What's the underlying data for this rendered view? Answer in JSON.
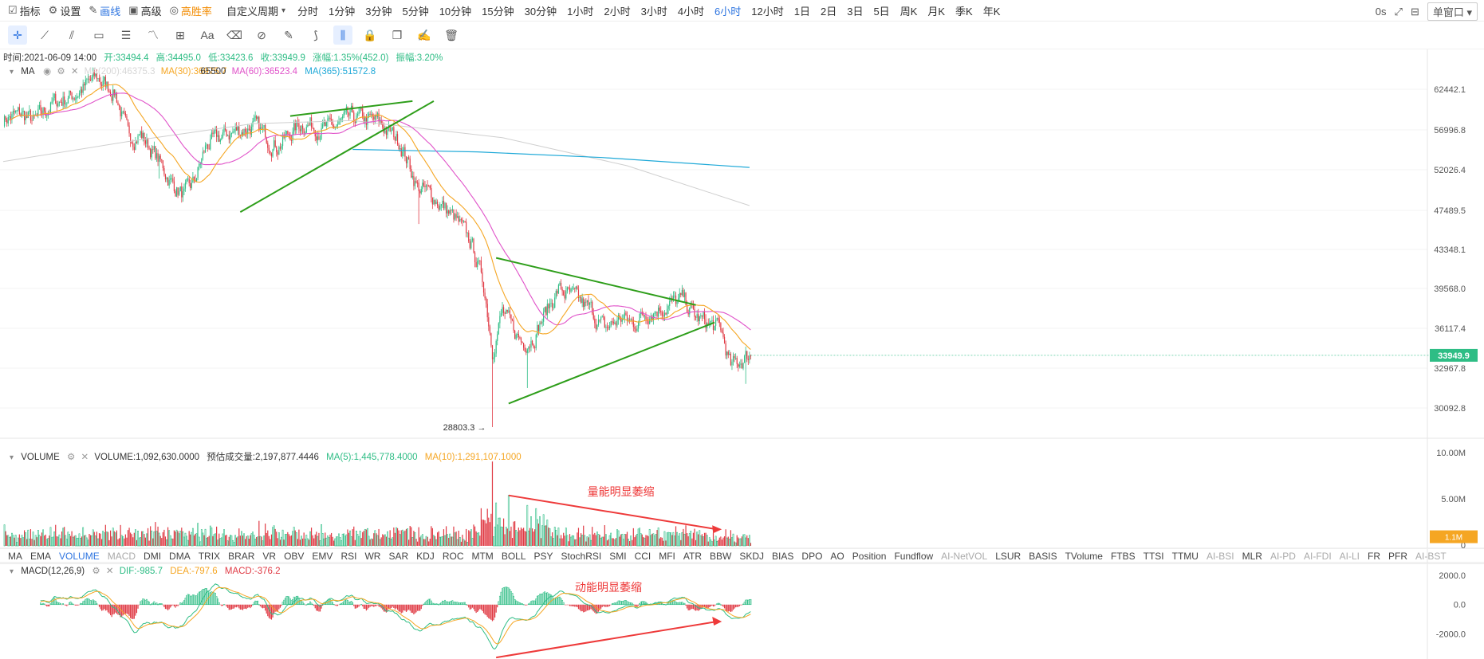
{
  "toolbar": {
    "indicator": "指标",
    "settings": "设置",
    "draw": "画线",
    "advanced": "高级",
    "winrate": "高胜率",
    "custom_period": "自定义周期",
    "periods": [
      "分时",
      "1分钟",
      "3分钟",
      "5分钟",
      "10分钟",
      "15分钟",
      "30分钟",
      "1小时",
      "2小时",
      "3小时",
      "4小时",
      "6小时",
      "12小时",
      "1日",
      "2日",
      "3日",
      "5日",
      "周K",
      "月K",
      "季K",
      "年K"
    ],
    "active_period": "6小时",
    "latency": "0s",
    "window": "单窗口"
  },
  "draw_tools": [
    "crosshair-icon",
    "trendline-icon",
    "fib-icon",
    "rect-icon",
    "channel-icon",
    "wave-icon",
    "measure-icon",
    "text-icon",
    "erase-icon",
    "magnet-icon",
    "pen-icon",
    "pattern-icon",
    "ruler-icon",
    "lock-icon",
    "copy-icon",
    "note-icon",
    "delete-icon"
  ],
  "ohlc": {
    "time": "时间:2021-06-09 14:00",
    "open": "开:33494.4",
    "high": "高:34495.0",
    "low": "低:33423.6",
    "close": "收:33949.9",
    "change": "涨幅:1.35%(452.0)",
    "amplitude": "振幅:3.20%"
  },
  "ma_legend": {
    "label": "MA",
    "ma200": "MA(200):46375.3",
    "ma30": "MA(30):36975.7",
    "ma30_tail": "65500",
    "ma60": "MA(60):36523.4",
    "ma365": "MA(365):51572.8"
  },
  "volume_legend": {
    "label": "VOLUME",
    "volume": "VOLUME:1,092,630.0000",
    "estimate": "预估成交量:2,197,877.4446",
    "ma5": "MA(5):1,445,778.4000",
    "ma10": "MA(10):1,291,107.1000"
  },
  "macd_legend": {
    "label": "MACD(12,26,9)",
    "dif": "DIF:-985.7",
    "dea": "DEA:-797.6",
    "macd": "MACD:-376.2"
  },
  "indicator_tabs": [
    "MA",
    "EMA",
    "VOLUME",
    "MACD",
    "DMI",
    "DMA",
    "TRIX",
    "BRAR",
    "VR",
    "OBV",
    "EMV",
    "RSI",
    "WR",
    "SAR",
    "KDJ",
    "ROC",
    "MTM",
    "BOLL",
    "PSY",
    "StochRSI",
    "SMI",
    "CCI",
    "MFI",
    "ATR",
    "BBW",
    "SKDJ",
    "BIAS",
    "DPO",
    "AO",
    "Position",
    "Fundflow",
    "AI-NetVOL",
    "LSUR",
    "BASIS",
    "TVolume",
    "FTBS",
    "TTSI",
    "TTMU",
    "AI-BSI",
    "MLR",
    "AI-PD",
    "AI-FDI",
    "AI-LI",
    "FR",
    "PFR",
    "AI-BST"
  ],
  "indicator_tabs_active": [
    "VOLUME"
  ],
  "indicator_tabs_dim": [
    "MACD",
    "AI-NetVOL",
    "AI-BSI",
    "AI-PD",
    "AI-FDI",
    "AI-LI",
    "AI-BST"
  ],
  "annotations": {
    "low_marker": "28803.3",
    "volume_note": "量能明显萎缩",
    "macd_note": "动能明显萎缩"
  },
  "chart_data": {
    "type": "candlestick",
    "price_axis": {
      "ticks": [
        62442.1,
        56996.8,
        52026.4,
        47489.5,
        43348.1,
        39568.0,
        36117.4,
        32967.8,
        30092.8
      ],
      "current": 33949.9,
      "current_label": "33949.9"
    },
    "volume_axis": {
      "ticks": [
        "10.00M",
        "5.00M",
        "0"
      ],
      "current_label": "1.1M"
    },
    "macd_axis": {
      "ticks": [
        "2000.0",
        "0.0",
        "-2000.0"
      ]
    },
    "price_anchors": [
      [
        0,
        58500
      ],
      [
        15,
        59000
      ],
      [
        25,
        58000
      ],
      [
        40,
        60500
      ],
      [
        55,
        61500
      ],
      [
        75,
        64000
      ],
      [
        90,
        62000
      ],
      [
        100,
        56000
      ],
      [
        110,
        56500
      ],
      [
        125,
        53000
      ],
      [
        135,
        50500
      ],
      [
        145,
        49000
      ],
      [
        153,
        50500
      ],
      [
        163,
        55000
      ],
      [
        180,
        56500
      ],
      [
        200,
        57500
      ],
      [
        220,
        55000
      ],
      [
        240,
        58000
      ],
      [
        260,
        57000
      ],
      [
        280,
        58500
      ],
      [
        300,
        58000
      ],
      [
        318,
        55500
      ],
      [
        332,
        50000
      ],
      [
        345,
        49000
      ],
      [
        362,
        46500
      ],
      [
        375,
        44000
      ],
      [
        385,
        40000
      ],
      [
        392,
        34500
      ],
      [
        400,
        37500
      ],
      [
        408,
        36000
      ],
      [
        416,
        35000
      ],
      [
        425,
        35500
      ],
      [
        435,
        37500
      ],
      [
        445,
        39500
      ],
      [
        460,
        38500
      ],
      [
        472,
        37500
      ],
      [
        482,
        36000
      ],
      [
        495,
        37000
      ],
      [
        505,
        36500
      ],
      [
        515,
        37500
      ],
      [
        530,
        38000
      ],
      [
        545,
        38500
      ],
      [
        555,
        37000
      ],
      [
        565,
        36500
      ],
      [
        575,
        36000
      ],
      [
        583,
        33000
      ],
      [
        590,
        33500
      ],
      [
        598,
        34000
      ]
    ],
    "spikes": [
      {
        "i": 392,
        "low": 28803.3
      },
      {
        "i": 333,
        "low": 46000
      },
      {
        "i": 125,
        "low": 51000
      },
      {
        "i": 420,
        "low": 31500
      },
      {
        "i": 595,
        "low": 31800
      }
    ],
    "ma": {
      "ma30_color": "#f5a623",
      "ma60_color": "#e052c9",
      "ma365_color": "#1fa9d8",
      "ma200_color": "#cfcfcf",
      "ma365": [
        [
          280,
          54500
        ],
        [
          380,
          54200
        ],
        [
          480,
          53500
        ],
        [
          598,
          52300
        ]
      ],
      "ma200": [
        [
          0,
          53000
        ],
        [
          100,
          55500
        ],
        [
          200,
          57800
        ],
        [
          280,
          58200
        ],
        [
          400,
          56000
        ],
        [
          500,
          52500
        ],
        [
          598,
          48000
        ]
      ]
    },
    "trendlines": [
      {
        "from": [
          190,
          47300
        ],
        "to": [
          345,
          60800
        ],
        "color": "#2e9e1a"
      },
      {
        "from": [
          230,
          58800
        ],
        "to": [
          328,
          60800
        ],
        "color": "#2e9e1a"
      },
      {
        "from": [
          395,
          42500
        ],
        "to": [
          555,
          38100
        ],
        "color": "#2e9e1a"
      },
      {
        "from": [
          405,
          30400
        ],
        "to": [
          570,
          36600
        ],
        "color": "#2e9e1a"
      }
    ],
    "volume_arrow": {
      "from": [
        405,
        6.1
      ],
      "to": [
        572,
        2.0
      ],
      "color": "#ee3a3a"
    },
    "macd_arrow": {
      "from": [
        395,
        -3600
      ],
      "to": [
        572,
        -1150
      ],
      "color": "#ee3a3a"
    },
    "volume_max": 10.6,
    "macd_range": [
      -3700,
      2100
    ],
    "candles_count": 600,
    "up_color": "#2ebd85",
    "down_color": "#e03a44"
  }
}
